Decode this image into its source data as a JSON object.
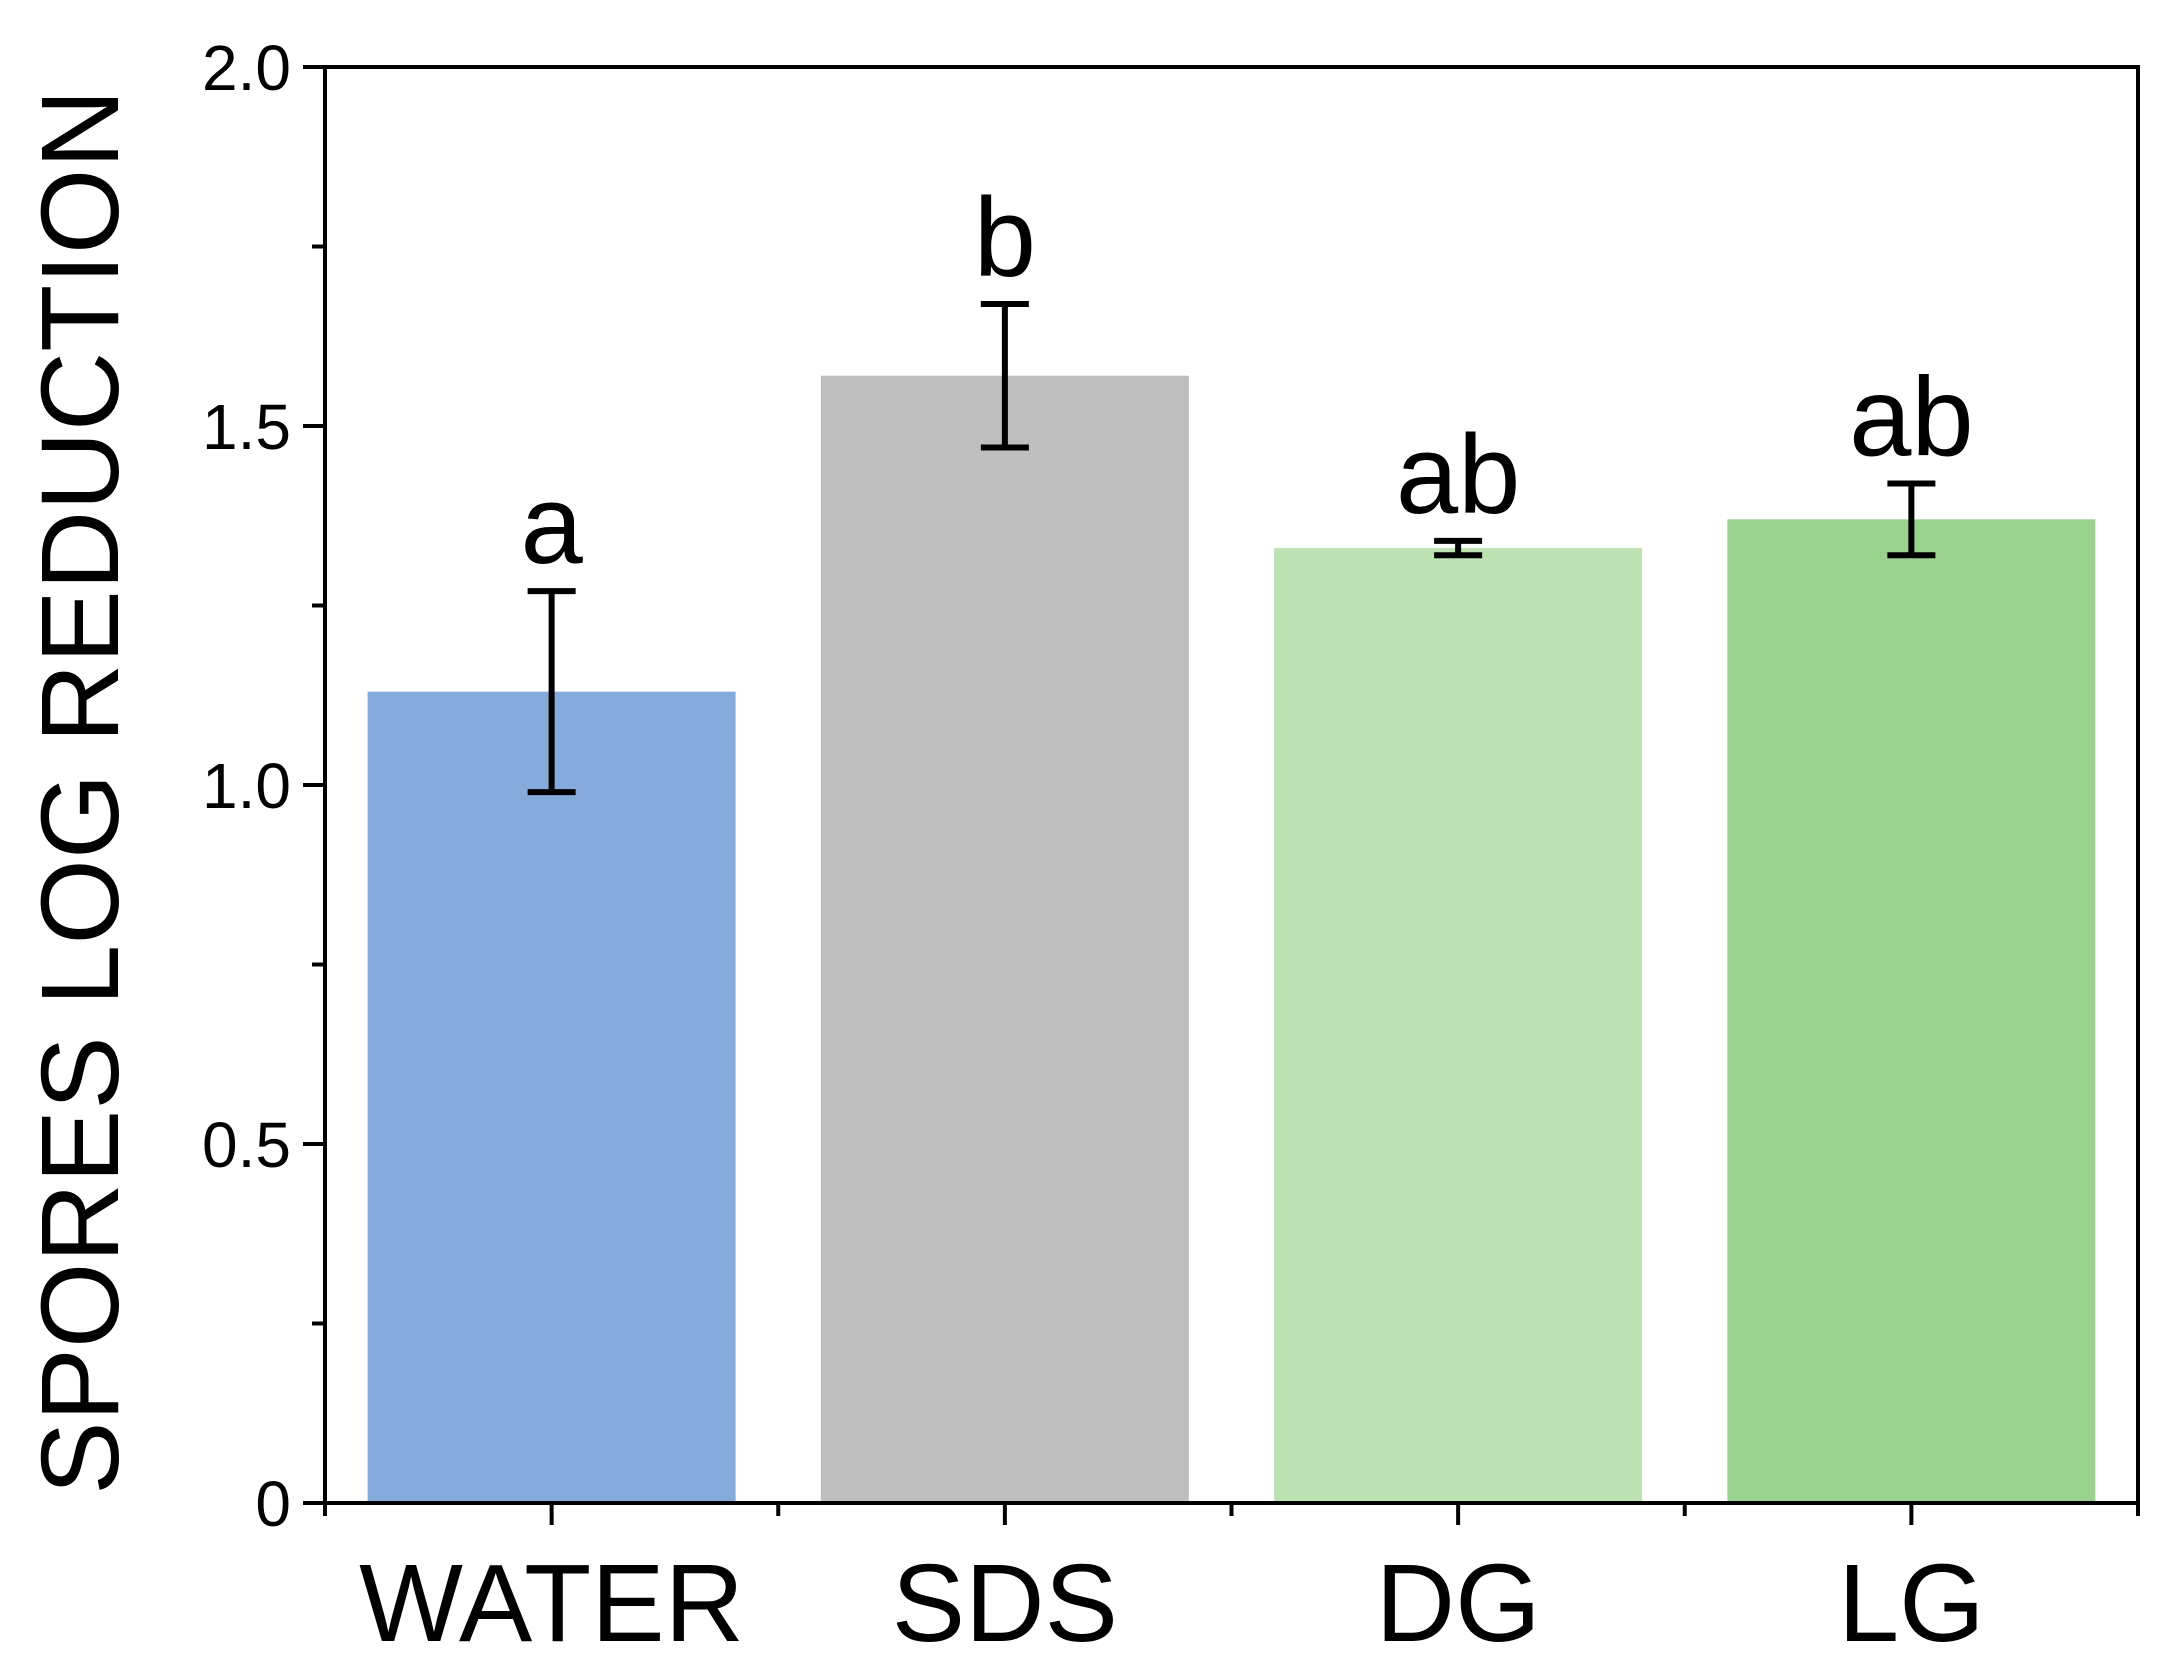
{
  "chart_data": {
    "type": "bar",
    "title": "",
    "xlabel": "",
    "ylabel": "SPORES LOG REDUCTION",
    "ylim": [
      0,
      2.0
    ],
    "yticks": [
      {
        "value": 0,
        "label": "0"
      },
      {
        "value": 0.5,
        "label": "0.5"
      },
      {
        "value": 1.0,
        "label": "1.0"
      },
      {
        "value": 1.5,
        "label": "1.5"
      },
      {
        "value": 2.0,
        "label": "2.0"
      }
    ],
    "categories": [
      "WATER",
      "SDS",
      "DG",
      "LG"
    ],
    "values": [
      1.13,
      1.57,
      1.33,
      1.37
    ],
    "errors": [
      0.14,
      0.1,
      0.01,
      0.05
    ],
    "significance": [
      "a",
      "b",
      "ab",
      "ab"
    ],
    "colors": [
      "#85abdd",
      "#bfbfbf",
      "#bce2b3",
      "#99d28c"
    ],
    "grid": false,
    "legend": "none"
  }
}
